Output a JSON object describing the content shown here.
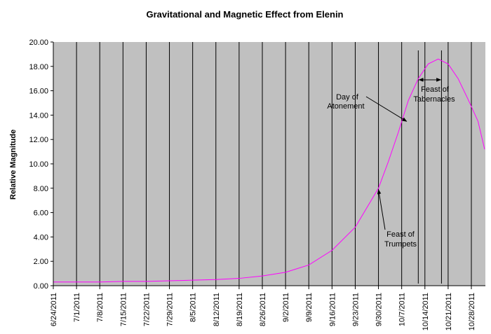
{
  "chart_data": {
    "type": "line",
    "title": "Gravitational and Magnetic Effect from Elenin",
    "xlabel": "",
    "ylabel": "Relative Magnitude",
    "ylim": [
      0,
      20
    ],
    "yticks": [
      "0.00",
      "2.00",
      "4.00",
      "6.00",
      "8.00",
      "10.00",
      "12.00",
      "14.00",
      "16.00",
      "18.00",
      "20.00"
    ],
    "xticks": [
      "6/24/2011",
      "7/1/2011",
      "7/8/2011",
      "7/15/2011",
      "7/22/2011",
      "7/29/2011",
      "8/5/2011",
      "8/12/2011",
      "8/19/2011",
      "8/26/2011",
      "9/2/2011",
      "9/9/2011",
      "9/16/2011",
      "9/23/2011",
      "9/30/2011",
      "10/7/2011",
      "10/14/2011",
      "10/21/2011",
      "10/28/2011"
    ],
    "xrange_days": [
      0,
      130
    ],
    "grid": "vertical lines at each date tick",
    "series": [
      {
        "name": "Relative Magnitude",
        "color": "#ff00ff",
        "x_days": [
          0,
          7,
          14,
          21,
          28,
          35,
          42,
          49,
          56,
          63,
          70,
          77,
          84,
          91,
          98,
          101,
          104,
          107,
          110,
          113,
          116,
          119,
          122,
          125,
          128,
          130
        ],
        "values": [
          0.3,
          0.3,
          0.3,
          0.35,
          0.35,
          0.4,
          0.45,
          0.5,
          0.6,
          0.8,
          1.1,
          1.7,
          2.9,
          4.8,
          8.0,
          10.2,
          12.6,
          15.2,
          17.0,
          18.2,
          18.6,
          18.2,
          17.0,
          15.3,
          13.5,
          11.2
        ]
      }
    ],
    "annotations": [
      {
        "text_lines": [
          "Day of",
          "Atonement"
        ],
        "target_day": 106.5,
        "target_value": 13.6
      },
      {
        "text_lines": [
          "Feast of",
          "Trumpets"
        ],
        "target_day": 98,
        "target_value": 8.0
      },
      {
        "text_lines": [
          "Feast of",
          "Tabernacles"
        ],
        "range_days": [
          110,
          117
        ],
        "arrow_value": 16.9
      }
    ],
    "event_lines_days": [
      110,
      117
    ]
  }
}
